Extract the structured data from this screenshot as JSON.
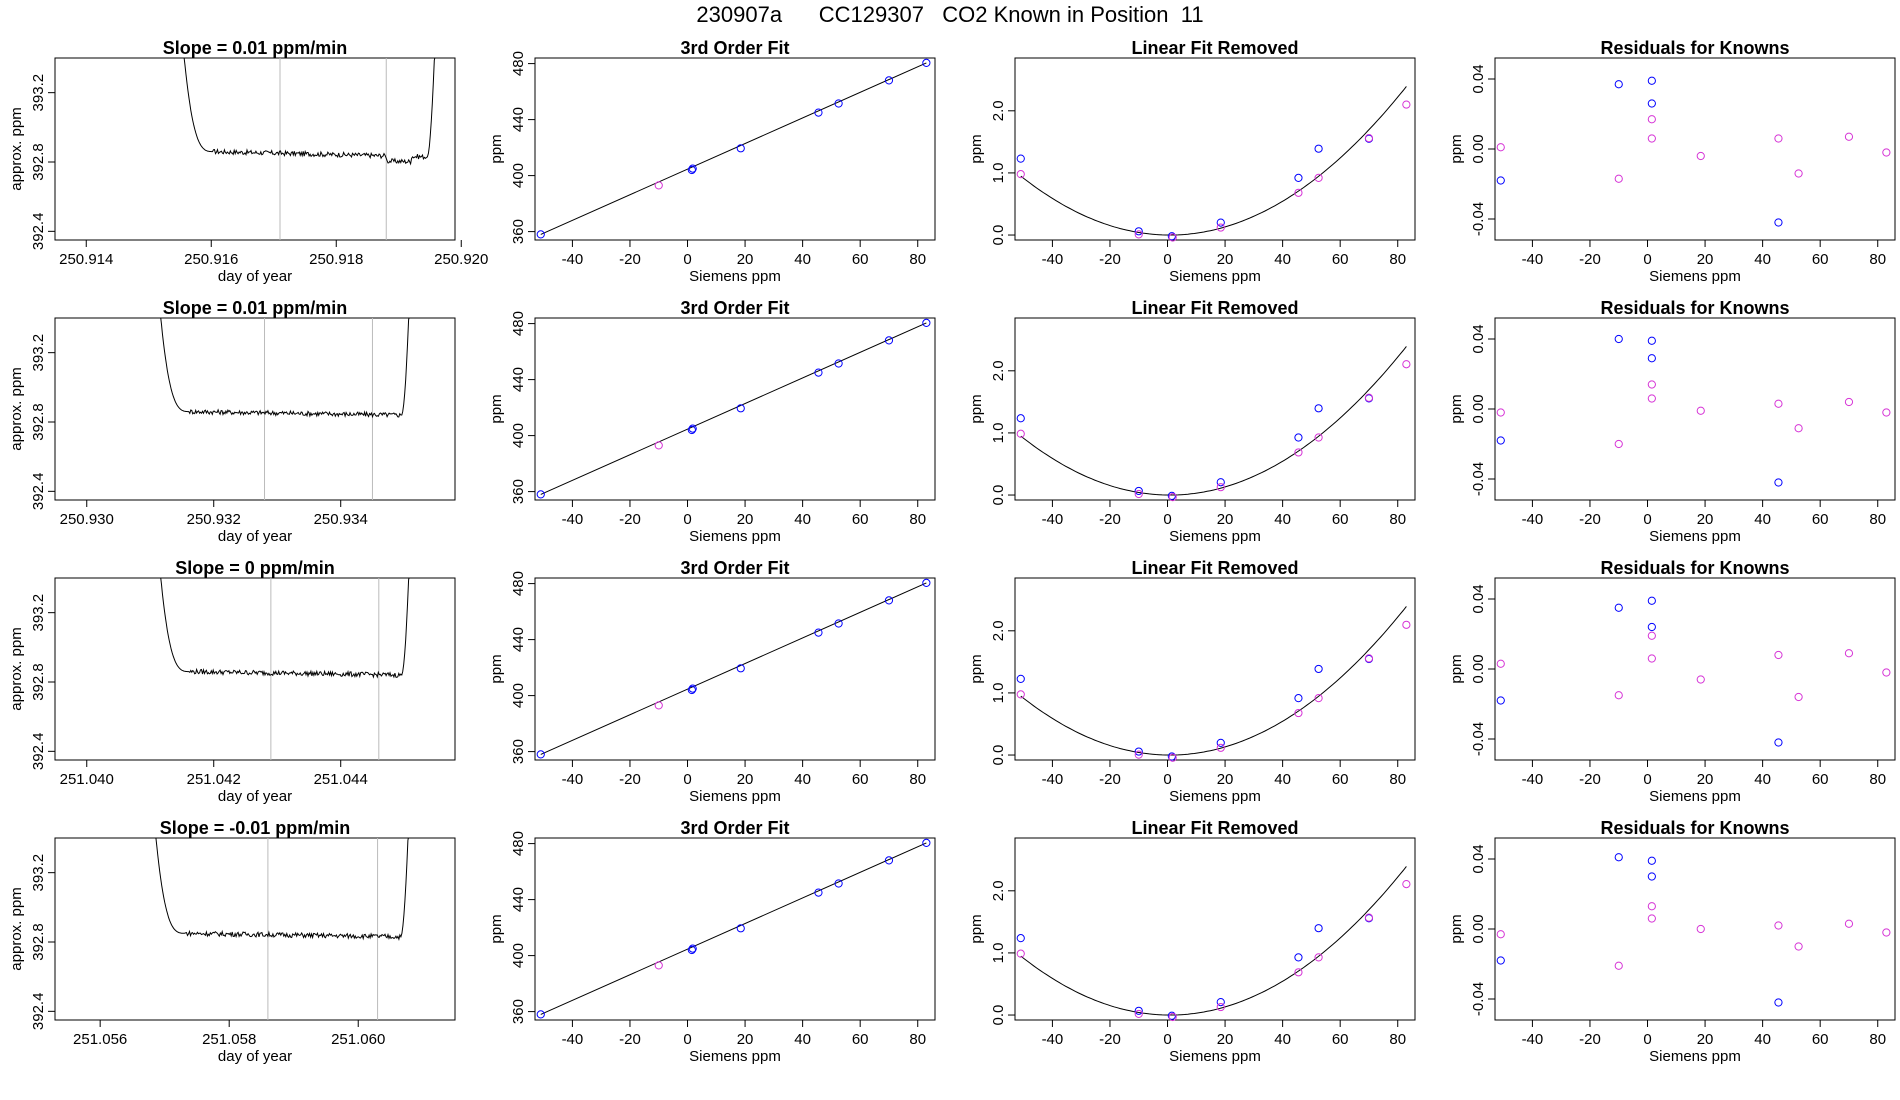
{
  "page": {
    "title_run": "230907a",
    "title_tank": "CC129307",
    "title_rest": "CO2 Known in Position  11"
  },
  "colors": {
    "blue": "#0000ff",
    "magenta": "#d633d6",
    "grey": "#bbbbbb",
    "line": "#000000"
  },
  "chart_data": [
    {
      "row": 1,
      "type": "line",
      "title": "Slope =  0.01  ppm/min",
      "xlabel": "day of year",
      "ylabel": "approx. ppm",
      "xlim": [
        250.9135,
        250.9199
      ],
      "ylim": [
        392.35,
        393.4
      ],
      "xticks": [
        "250.914",
        "250.916",
        "250.918",
        "250.920"
      ],
      "xtick_values": [
        250.914,
        250.916,
        250.918,
        250.92
      ],
      "yticks": [
        "392.4",
        "392.8",
        "393.2"
      ],
      "ytick_values": [
        392.4,
        392.8,
        393.2
      ],
      "vlines": [
        250.9171,
        250.9188
      ],
      "trace": {
        "x0": 250.9155,
        "x1": 250.9196,
        "base": 392.86,
        "end": 392.83,
        "dip_start": 250.9188,
        "dip_end": 250.9192,
        "dip": -0.03
      }
    },
    {
      "row": 2,
      "type": "line",
      "title": "Slope =  0.01  ppm/min",
      "xlabel": "day of year",
      "ylabel": "approx. ppm",
      "xlim": [
        250.9295,
        250.9358
      ],
      "ylim": [
        392.35,
        393.4
      ],
      "xticks": [
        "250.930",
        "250.932",
        "250.934"
      ],
      "xtick_values": [
        250.93,
        250.932,
        250.934
      ],
      "yticks": [
        "392.4",
        "392.8",
        "393.2"
      ],
      "ytick_values": [
        392.4,
        392.8,
        393.2
      ],
      "vlines": [
        250.9328,
        250.9345
      ],
      "trace": {
        "x0": 250.9311,
        "x1": 250.9351,
        "base": 392.86,
        "end": 392.84,
        "dip_start": 0,
        "dip_end": 0,
        "dip": 0
      }
    },
    {
      "row": 3,
      "type": "line",
      "title": "Slope =  0  ppm/min",
      "xlabel": "day of year",
      "ylabel": "approx. ppm",
      "xlim": [
        251.0395,
        251.0458
      ],
      "ylim": [
        392.35,
        393.4
      ],
      "xticks": [
        "251.040",
        "251.042",
        "251.044"
      ],
      "xtick_values": [
        251.04,
        251.042,
        251.044
      ],
      "yticks": [
        "392.4",
        "392.8",
        "393.2"
      ],
      "ytick_values": [
        392.4,
        392.8,
        393.2
      ],
      "vlines": [
        251.0429,
        251.0446
      ],
      "trace": {
        "x0": 251.0411,
        "x1": 251.0451,
        "base": 392.86,
        "end": 392.84,
        "dip_start": 0,
        "dip_end": 0,
        "dip": 0
      }
    },
    {
      "row": 4,
      "type": "line",
      "title": "Slope =  -0.01  ppm/min",
      "xlabel": "day of year",
      "ylabel": "approx. ppm",
      "xlim": [
        251.0553,
        251.0615
      ],
      "ylim": [
        392.35,
        393.4
      ],
      "xticks": [
        "251.056",
        "251.058",
        "251.060"
      ],
      "xtick_values": [
        251.056,
        251.058,
        251.06
      ],
      "yticks": [
        "392.4",
        "392.8",
        "393.2"
      ],
      "ytick_values": [
        392.4,
        392.8,
        393.2
      ],
      "vlines": [
        251.0586,
        251.0603
      ],
      "trace": {
        "x0": 251.0568,
        "x1": 251.0608,
        "base": 392.85,
        "end": 392.83,
        "dip_start": 0,
        "dip_end": 0,
        "dip": 0
      }
    }
  ],
  "fit_panels": {
    "title": "3rd Order Fit",
    "xlabel": "Siemens ppm",
    "ylabel": "ppm",
    "xlim": [
      -53,
      86
    ],
    "ylim": [
      354,
      484
    ],
    "xticks": [
      "-40",
      "-20",
      "0",
      "20",
      "40",
      "60",
      "80"
    ],
    "xtick_values": [
      -40,
      -20,
      0,
      20,
      40,
      60,
      80
    ],
    "yticks": [
      "360",
      "400",
      "440",
      "480"
    ],
    "ytick_values": [
      360,
      400,
      440,
      480
    ],
    "points": [
      {
        "x": -51,
        "y": 358,
        "c": "blue"
      },
      {
        "x": -10,
        "y": 393,
        "c": "magenta"
      },
      {
        "x": 1.5,
        "y": 404,
        "c": "blue"
      },
      {
        "x": 1.8,
        "y": 405,
        "c": "blue"
      },
      {
        "x": 18.5,
        "y": 419.5,
        "c": "blue"
      },
      {
        "x": 45.5,
        "y": 445,
        "c": "blue"
      },
      {
        "x": 52.5,
        "y": 451.5,
        "c": "blue"
      },
      {
        "x": 70,
        "y": 468,
        "c": "blue"
      },
      {
        "x": 83,
        "y": 480.5,
        "c": "blue"
      }
    ],
    "line": [
      [
        -51,
        358
      ],
      [
        83,
        480.5
      ]
    ]
  },
  "linear_panels": {
    "title": "Linear Fit Removed",
    "xlabel": "Siemens ppm",
    "ylabel": "ppm",
    "xlim": [
      -53,
      86
    ],
    "ylim": [
      -0.08,
      2.85
    ],
    "xticks": [
      "-40",
      "-20",
      "0",
      "20",
      "40",
      "60",
      "80"
    ],
    "xtick_values": [
      -40,
      -20,
      0,
      20,
      40,
      60,
      80
    ],
    "yticks": [
      "0.0",
      "1.0",
      "2.0"
    ],
    "ytick_values": [
      0,
      1,
      2
    ],
    "points": [
      {
        "x": -51,
        "y": 1.23,
        "c": "blue"
      },
      {
        "x": -51,
        "y": 0.98,
        "c": "magenta"
      },
      {
        "x": -10,
        "y": 0.06,
        "c": "blue"
      },
      {
        "x": -10,
        "y": 0.01,
        "c": "magenta"
      },
      {
        "x": 1.5,
        "y": -0.02,
        "c": "blue"
      },
      {
        "x": 1.8,
        "y": -0.04,
        "c": "magenta"
      },
      {
        "x": 18.5,
        "y": 0.2,
        "c": "blue"
      },
      {
        "x": 18.5,
        "y": 0.12,
        "c": "magenta"
      },
      {
        "x": 45.5,
        "y": 0.92,
        "c": "blue"
      },
      {
        "x": 45.5,
        "y": 0.68,
        "c": "magenta"
      },
      {
        "x": 52.5,
        "y": 1.39,
        "c": "blue"
      },
      {
        "x": 52.5,
        "y": 0.92,
        "c": "magenta"
      },
      {
        "x": 70,
        "y": 1.55,
        "c": "blue"
      },
      {
        "x": 70,
        "y": 1.56,
        "c": "magenta"
      },
      {
        "x": 83,
        "y": 2.1,
        "c": "magenta"
      }
    ],
    "curve_coeffs": {
      "a": 0.000354,
      "x0": 1.5,
      "b": 0.0005
    }
  },
  "residual_panels": {
    "title": "Residuals for Knowns",
    "xlabel": "Siemens ppm",
    "ylabel": "ppm",
    "xlim": [
      -53,
      86
    ],
    "ylim": [
      -0.052,
      0.052
    ],
    "xticks": [
      "-40",
      "-20",
      "0",
      "20",
      "40",
      "60",
      "80"
    ],
    "xtick_values": [
      -40,
      -20,
      0,
      20,
      40,
      60,
      80
    ],
    "yticks": [
      "-0.04",
      "0.00",
      "0.04"
    ],
    "ytick_values": [
      -0.04,
      0,
      0.04
    ],
    "points": [
      {
        "x": -51,
        "y": 0.001,
        "c": "magenta"
      },
      {
        "x": -51,
        "y": -0.018,
        "c": "blue"
      },
      {
        "x": -10,
        "y": 0.037,
        "c": "blue"
      },
      {
        "x": -10,
        "y": -0.017,
        "c": "magenta"
      },
      {
        "x": 1.5,
        "y": 0.039,
        "c": "blue"
      },
      {
        "x": 1.5,
        "y": 0.026,
        "c": "blue"
      },
      {
        "x": 1.5,
        "y": 0.017,
        "c": "magenta"
      },
      {
        "x": 1.5,
        "y": 0.006,
        "c": "magenta"
      },
      {
        "x": 18.5,
        "y": -0.004,
        "c": "magenta"
      },
      {
        "x": 45.5,
        "y": 0.006,
        "c": "magenta"
      },
      {
        "x": 45.5,
        "y": -0.042,
        "c": "blue"
      },
      {
        "x": 52.5,
        "y": -0.014,
        "c": "magenta"
      },
      {
        "x": 70,
        "y": 0.007,
        "c": "magenta"
      },
      {
        "x": 83,
        "y": -0.002,
        "c": "magenta"
      }
    ]
  },
  "row_variation": [
    0,
    0.003,
    -0.002,
    0.004
  ]
}
